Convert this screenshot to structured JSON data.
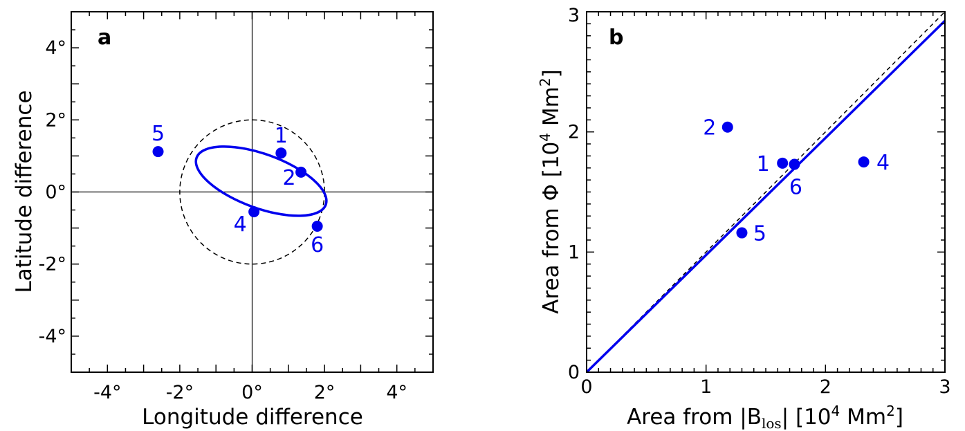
{
  "colors": {
    "points": "#0000ee",
    "axes": "#000000",
    "reference_circle": "#000000",
    "fit_line": "#0000ee"
  },
  "chart_data": [
    {
      "panel": "a",
      "type": "scatter",
      "xlabel": "Longitude difference",
      "ylabel": "Latitude difference",
      "xlim": [
        -5,
        5
      ],
      "ylim": [
        -5,
        5
      ],
      "xticks": [
        -4,
        -2,
        0,
        2,
        4
      ],
      "yticks": [
        -4,
        -2,
        0,
        2,
        4
      ],
      "xtick_labels": [
        "-4°",
        "-2°",
        "0°",
        "2°",
        "4°"
      ],
      "ytick_labels": [
        "-4°",
        "-2°",
        "0°",
        "2°",
        "4°"
      ],
      "reference_lines": {
        "x": 0,
        "y": 0
      },
      "dashed_circle": {
        "center": [
          0,
          0
        ],
        "radius": 2
      },
      "ellipse": {
        "center": [
          0.25,
          0.3
        ],
        "semi_major": 1.9,
        "semi_minor": 0.75,
        "angle_deg": -20
      },
      "points": [
        {
          "label": "1",
          "x": 0.8,
          "y": 1.08
        },
        {
          "label": "2",
          "x": 1.35,
          "y": 0.55
        },
        {
          "label": "4",
          "x": 0.05,
          "y": -0.55
        },
        {
          "label": "5",
          "x": -2.6,
          "y": 1.12
        },
        {
          "label": "6",
          "x": 1.8,
          "y": -0.95
        }
      ]
    },
    {
      "panel": "b",
      "type": "scatter",
      "xlabel_prefix": "Area from |B",
      "xlabel_sub": "los",
      "xlabel_mid": "| [10",
      "xlabel_sup": "4",
      "xlabel_suffix": " Mm",
      "xlabel_sup2": "2",
      "xlabel_end": "]",
      "ylabel_prefix": "Area from Φ [10",
      "ylabel_sup": "4",
      "ylabel_mid": " Mm",
      "ylabel_sup2": "2",
      "ylabel_end": "]",
      "xlim": [
        0,
        3
      ],
      "ylim": [
        0,
        3
      ],
      "xticks": [
        0,
        1,
        2,
        3
      ],
      "yticks": [
        0,
        1,
        2,
        3
      ],
      "xtick_labels": [
        "0",
        "1",
        "2",
        "3"
      ],
      "ytick_labels": [
        "0",
        "1",
        "2",
        "3"
      ],
      "identity_line_dashed": {
        "slope": 1,
        "intercept": 0
      },
      "fit_line": {
        "slope": 0.975,
        "intercept": 0
      },
      "points": [
        {
          "label": "1",
          "x": 1.64,
          "y": 1.74
        },
        {
          "label": "2",
          "x": 1.18,
          "y": 2.04
        },
        {
          "label": "4",
          "x": 2.32,
          "y": 1.75
        },
        {
          "label": "5",
          "x": 1.3,
          "y": 1.16
        },
        {
          "label": "6",
          "x": 1.74,
          "y": 1.73
        }
      ]
    }
  ]
}
